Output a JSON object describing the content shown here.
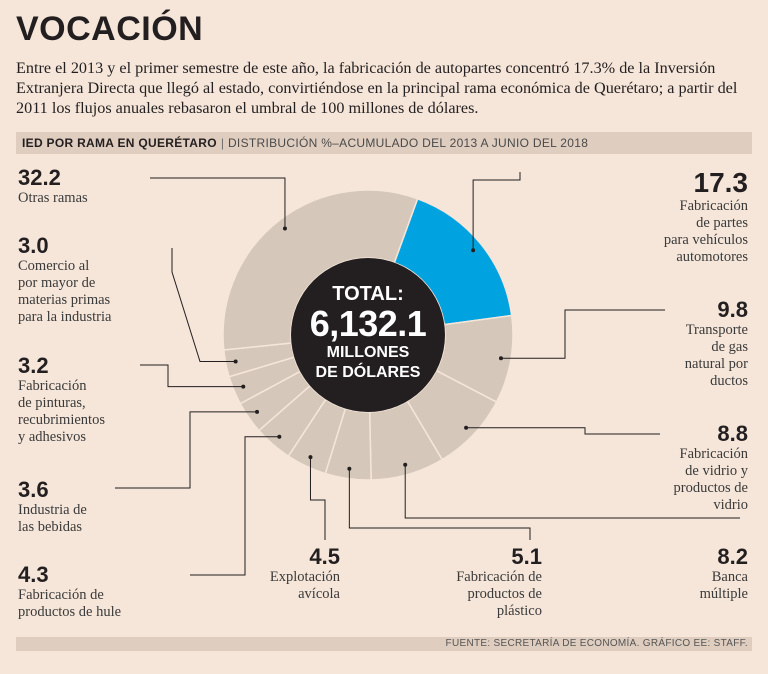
{
  "header": {
    "title": "VOCACIÓN",
    "intro": "Entre el 2013 y el primer semestre de este año, la fabricación de autopartes concentró 17.3% de la Inversión Extranjera Directa que llegó al estado, convirtiéndose en la principal rama económica de Querétaro; a partir del 2011 los flujos anuales rebasaron el umbral de 100 millones de dólares."
  },
  "band": {
    "label": "IED POR RAMA EN QUERÉTARO",
    "separator": "|",
    "subtitle": "DISTRIBUCIÓN %–ACUMULADO DEL 2013 A JUNIO DEL 2018"
  },
  "center": {
    "line1": "TOTAL:",
    "line2": "6,132.1",
    "line3": "MILLONES",
    "line4": "DE DÓLARES"
  },
  "footer": {
    "source": "FUENTE: SECRETARÍA DE ECONOMÍA. GRÁFICO EE: STAFF."
  },
  "colors": {
    "background": "#f5e6d9",
    "slice": "#d5c8bb",
    "highlight": "#00a3e0",
    "center": "#231f20",
    "band": "#dfcdbf"
  },
  "chart_data": {
    "type": "pie",
    "title": "IED POR RAMA EN QUERÉTARO",
    "subtitle": "DISTRIBUCIÓN %–ACUMULADO DEL 2013 A JUNIO DEL 2018",
    "unit": "%",
    "total": "6,132.1 millones de dólares",
    "slices": [
      {
        "label": "Fabricación de partes para vehículos automotores",
        "value": 17.3,
        "value_text": "17.3",
        "highlight": true
      },
      {
        "label": "Transporte de gas natural por ductos",
        "value": 9.8,
        "value_text": "9.8"
      },
      {
        "label": "Fabricación de vidrio y productos de vidrio",
        "value": 8.8,
        "value_text": "8.8"
      },
      {
        "label": "Banca múltiple",
        "value": 8.2,
        "value_text": "8.2"
      },
      {
        "label": "Fabricación de productos de plástico",
        "value": 5.1,
        "value_text": "5.1"
      },
      {
        "label": "Explotación avícola",
        "value": 4.5,
        "value_text": "4.5"
      },
      {
        "label": "Fabricación de productos de hule",
        "value": 4.3,
        "value_text": "4.3"
      },
      {
        "label": "Industria de las bebidas",
        "value": 3.6,
        "value_text": "3.6"
      },
      {
        "label": "Fabricación de pinturas, recubrimientos y adhesivos",
        "value": 3.2,
        "value_text": "3.2"
      },
      {
        "label": "Comercio al por mayor de materias primas para la industria",
        "value": 3.0,
        "value_text": "3.0"
      },
      {
        "label": "Otras ramas",
        "value": 32.2,
        "value_text": "32.2"
      }
    ]
  },
  "labels": {
    "otras": {
      "value": "32.2",
      "lines": [
        "Otras ramas"
      ]
    },
    "comercio": {
      "value": "3.0",
      "lines": [
        "Comercio al",
        "por mayor de",
        "materias primas",
        "para la industria"
      ]
    },
    "pinturas": {
      "value": "3.2",
      "lines": [
        "Fabricación",
        "de pinturas,",
        "recubrimientos",
        "y adhesivos"
      ]
    },
    "bebidas": {
      "value": "3.6",
      "lines": [
        "Industria de",
        "las bebidas"
      ]
    },
    "hule": {
      "value": "4.3",
      "lines": [
        "Fabricación de",
        "productos de hule"
      ]
    },
    "avicola": {
      "value": "4.5",
      "lines": [
        "Explotación",
        "avícola"
      ]
    },
    "plastico": {
      "value": "5.1",
      "lines": [
        "Fabricación de",
        "productos de",
        "plástico"
      ]
    },
    "banca": {
      "value": "8.2",
      "lines": [
        "Banca",
        "múltiple"
      ]
    },
    "vidrio": {
      "value": "8.8",
      "lines": [
        "Fabricación",
        "de vidrio y",
        "productos de",
        "vidrio"
      ]
    },
    "gas": {
      "value": "9.8",
      "lines": [
        "Transporte",
        "de gas",
        "natural por",
        "ductos"
      ]
    },
    "autopartes": {
      "value": "17.3",
      "lines": [
        "Fabricación",
        "de partes",
        "para vehículos",
        "automotores"
      ]
    }
  }
}
